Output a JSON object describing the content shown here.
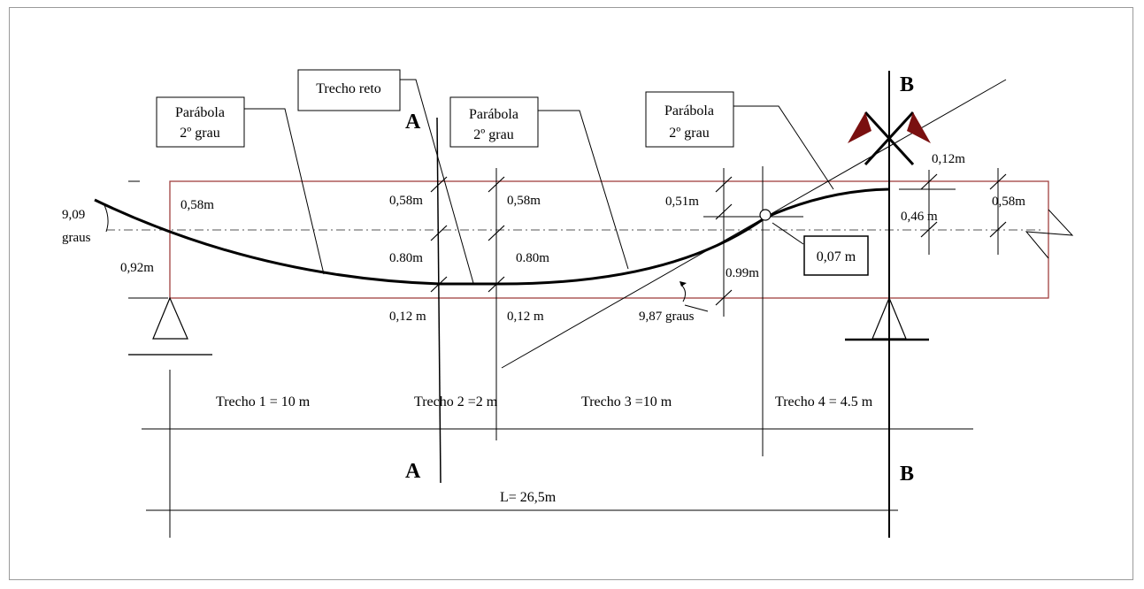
{
  "labels": {
    "parabola_1": [
      "Parábola",
      "2º grau"
    ],
    "trecho_reto": "Trecho reto",
    "parabola_2": [
      "Parábola",
      "2º grau"
    ],
    "parabola_3": [
      "Parábola",
      "2º grau"
    ],
    "section_a": "A",
    "section_b": "B",
    "angle_left": [
      "9,09",
      "graus"
    ],
    "angle_right": "9,87 graus",
    "offset_box": "0,07 m"
  },
  "dimensions": {
    "left_top": "0,58m",
    "left_bottom": "0,92m",
    "a1_top": "0,58m",
    "a1_mid": "0.80m",
    "a1_bottom": "0,12 m",
    "a2_top": "0,58m",
    "a2_mid": "0.80m",
    "a2_bottom": "0,12 m",
    "p3_top": "0,51m",
    "p3_height": "0.99m",
    "b_top": "0,12m",
    "b_mid": "0,46 m",
    "right_top": "0,58m"
  },
  "spans": {
    "trecho_1": "Trecho 1 = 10 m",
    "trecho_2": "Trecho 2 =2 m",
    "trecho_3": "Trecho 3 =10 m",
    "trecho_4": "Trecho 4 = 4.5 m",
    "total": "L= 26,5m"
  },
  "colors": {
    "beam_outline": "#a0403f",
    "anchor_flags": "#7a1010",
    "frame_border": "#9a9a9a"
  }
}
